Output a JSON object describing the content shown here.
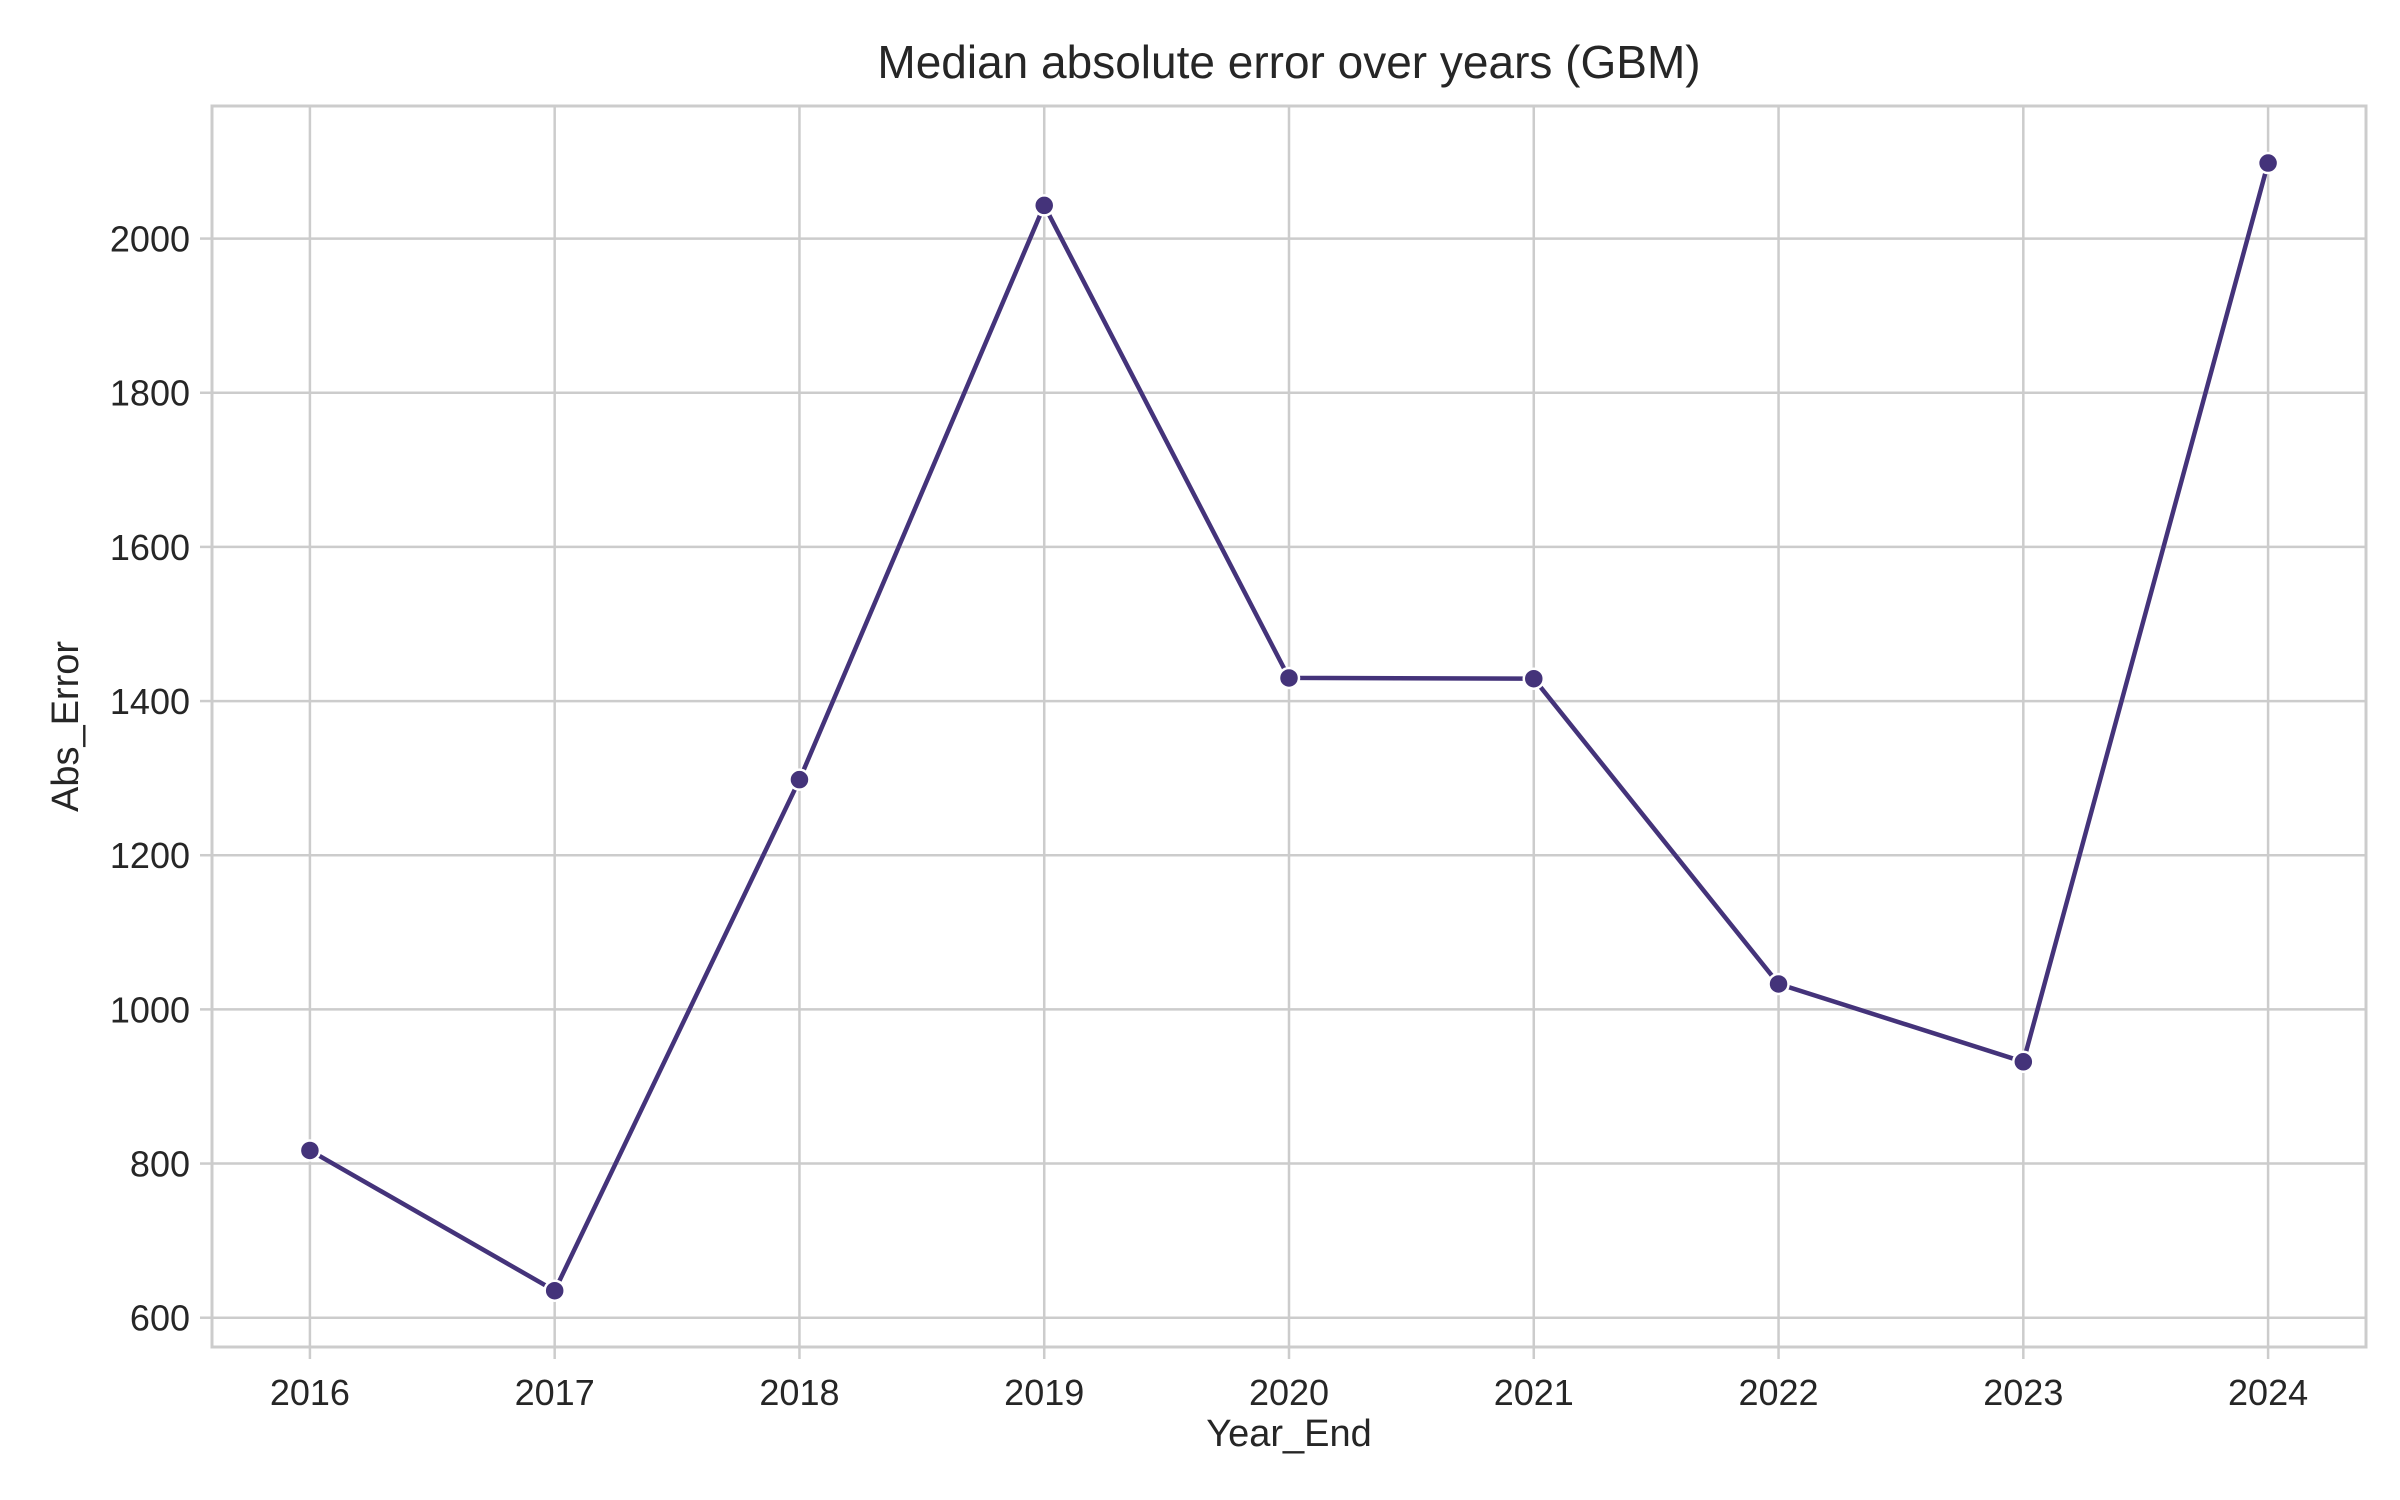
{
  "chart_data": {
    "type": "line",
    "title": "Median absolute error over years (GBM)",
    "xlabel": "Year_End",
    "ylabel": "Abs_Error",
    "x": [
      2016,
      2017,
      2018,
      2019,
      2020,
      2021,
      2022,
      2023,
      2024
    ],
    "series": [
      {
        "values": [
          817,
          635,
          1298,
          2043,
          1430,
          1429,
          1033,
          932,
          2098
        ],
        "color": "#44337a"
      }
    ],
    "xlim": [
      2015.6,
      2024.4
    ],
    "ylim": [
      562,
      2172
    ],
    "yticks": [
      600,
      800,
      1000,
      1200,
      1400,
      1600,
      1800,
      2000
    ],
    "xticks": [
      2016,
      2017,
      2018,
      2019,
      2020,
      2021,
      2022,
      2023,
      2024
    ],
    "grid": true,
    "markers": "circle",
    "legend": "none"
  }
}
